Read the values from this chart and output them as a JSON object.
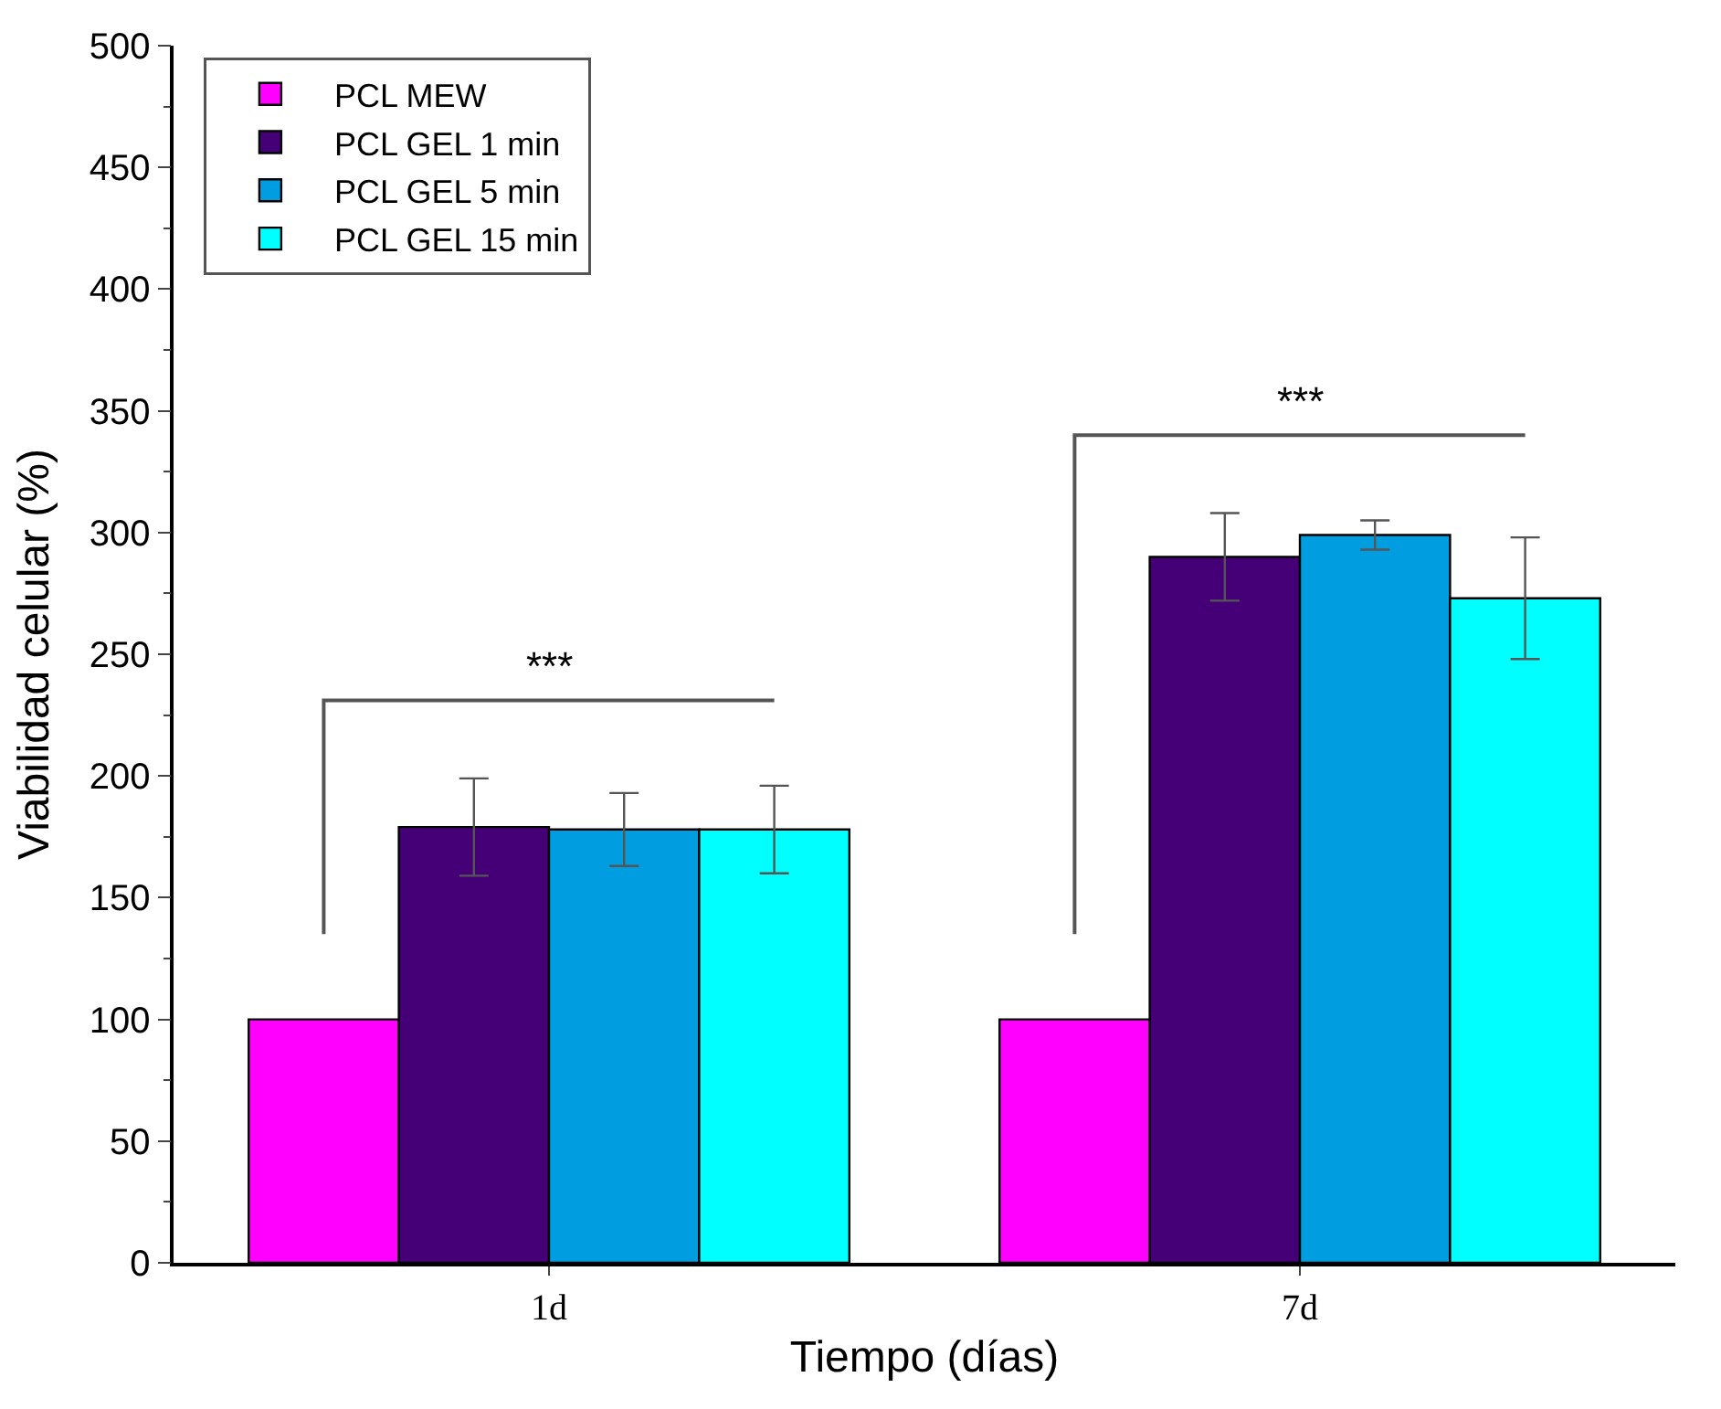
{
  "chart_data": {
    "type": "bar",
    "xlabel": "Tiempo (días)",
    "ylabel": "Viabilidad celular (%)",
    "categories": [
      "1d",
      "7d"
    ],
    "series": [
      {
        "name": "PCL MEW",
        "color": "#ff00ff",
        "values": [
          100,
          100
        ]
      },
      {
        "name": "PCL GEL 1 min",
        "color": "#450078",
        "values": [
          179,
          290
        ],
        "errors": [
          20,
          18
        ]
      },
      {
        "name": "PCL GEL 5 min",
        "color": "#009ee0",
        "values": [
          178,
          299
        ],
        "errors": [
          15,
          6
        ]
      },
      {
        "name": "PCL GEL 15 min",
        "color": "#00ffff",
        "values": [
          178,
          273
        ],
        "errors": [
          18,
          25
        ]
      }
    ],
    "annotations": [
      "***",
      "***"
    ],
    "ylim": [
      0,
      500
    ],
    "yticks": [
      0,
      50,
      100,
      150,
      200,
      250,
      300,
      350,
      400,
      450,
      500
    ],
    "legend": "top left"
  }
}
